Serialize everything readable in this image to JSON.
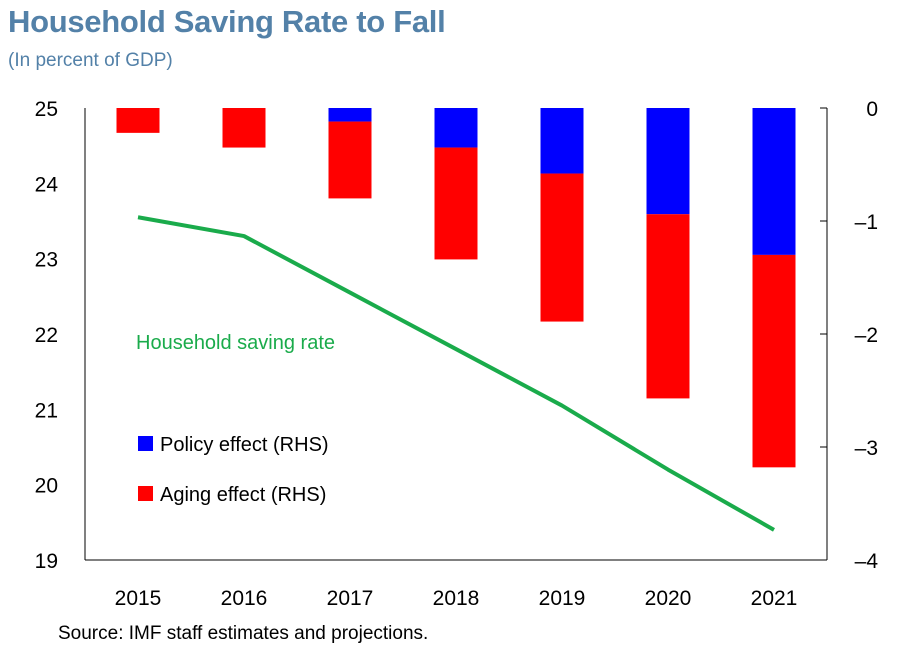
{
  "title": "Household Saving Rate to Fall",
  "subtitle": "(In percent of GDP)",
  "source": "Source: IMF staff estimates and projections.",
  "chart_data": {
    "type": "bar+line",
    "categories": [
      "2015",
      "2016",
      "2017",
      "2018",
      "2019",
      "2020",
      "2021"
    ],
    "left_axis": {
      "ylim": [
        19,
        25
      ],
      "ticks": [
        19,
        20,
        21,
        22,
        23,
        24,
        25
      ]
    },
    "right_axis": {
      "ylim": [
        -4,
        0
      ],
      "ticks": [
        "0",
        "-1",
        "-2",
        "-3",
        "-4"
      ]
    },
    "bar_series": [
      {
        "name": "Policy effect (RHS)",
        "color": "#0000ff",
        "axis": "right",
        "stacked": true,
        "values": [
          0.0,
          0.0,
          -0.12,
          -0.35,
          -0.58,
          -0.94,
          -1.3
        ]
      },
      {
        "name": "Aging effect (RHS)",
        "color": "#ff0000",
        "axis": "right",
        "stacked": true,
        "values": [
          -0.22,
          -0.35,
          -0.68,
          -0.99,
          -1.31,
          -1.63,
          -1.88
        ]
      }
    ],
    "line_series": [
      {
        "name": "Household saving rate",
        "color": "#1aab4b",
        "axis": "left",
        "values": [
          23.55,
          23.3,
          22.55,
          21.8,
          21.05,
          20.2,
          19.4
        ]
      }
    ],
    "legend": [
      {
        "label": "Policy effect (RHS)",
        "color": "#0000ff"
      },
      {
        "label": "Aging effect (RHS)",
        "color": "#ff0000"
      }
    ],
    "line_label": "Household saving rate",
    "grid": false
  }
}
